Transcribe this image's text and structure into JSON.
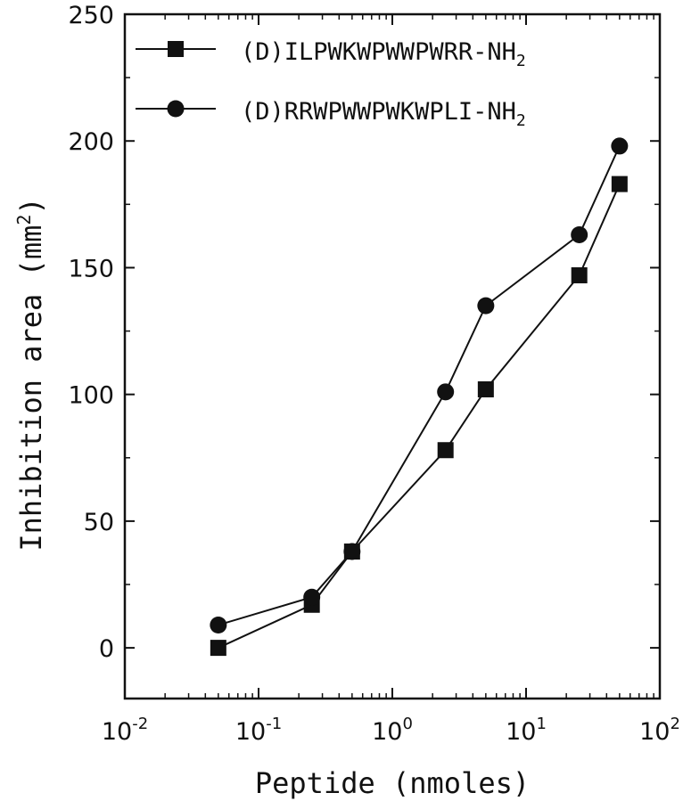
{
  "chart_data": {
    "type": "line",
    "xscale": "log",
    "xlim": [
      0.01,
      100
    ],
    "ylim": [
      -20,
      250
    ],
    "x_ticks": [
      0.01,
      0.1,
      1,
      10,
      100
    ],
    "x_tick_labels": [
      {
        "base": "10",
        "exp": "-2"
      },
      {
        "base": "10",
        "exp": "-1"
      },
      {
        "base": "10",
        "exp": "0"
      },
      {
        "base": "10",
        "exp": "1"
      },
      {
        "base": "10",
        "exp": "2"
      }
    ],
    "y_ticks": [
      0,
      50,
      100,
      150,
      200,
      250
    ],
    "y_tick_labels": [
      "0",
      "50",
      "100",
      "150",
      "200",
      "250"
    ],
    "xlabel": "Peptide (nmoles)",
    "ylabel": {
      "main": "Inhibition area (mm",
      "sup": "2",
      "tail": ")"
    },
    "legend_position": "top-left",
    "series": [
      {
        "name": {
          "main": "(D)ILPWKWPWWPWRR-NH",
          "sub": "2"
        },
        "marker": "square",
        "x": [
          0.05,
          0.25,
          0.5,
          2.5,
          5,
          25,
          50
        ],
        "y": [
          0,
          17,
          38,
          78,
          102,
          147,
          183
        ]
      },
      {
        "name": {
          "main": "(D)RRWPWWPWKWPLI-NH",
          "sub": "2"
        },
        "marker": "circle",
        "x": [
          0.05,
          0.25,
          0.5,
          2.5,
          5,
          25,
          50
        ],
        "y": [
          9,
          20,
          38,
          101,
          135,
          163,
          198
        ]
      }
    ]
  }
}
